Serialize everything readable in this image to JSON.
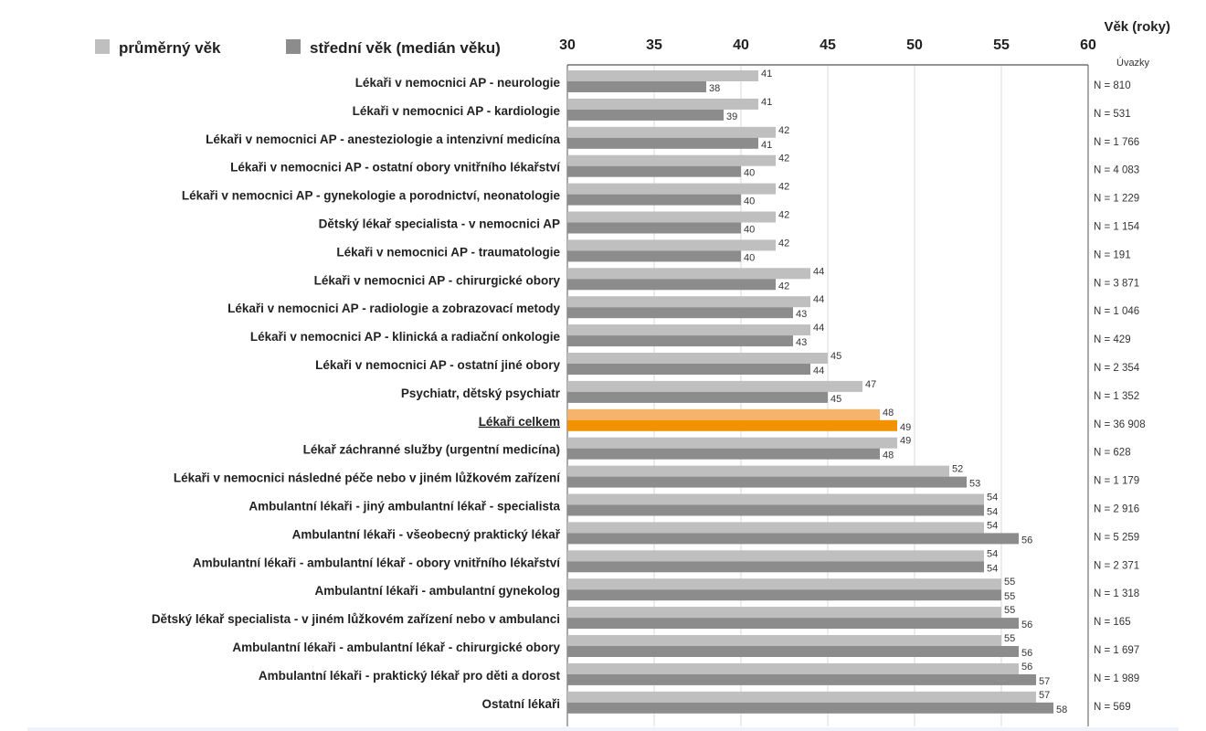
{
  "chart_data": {
    "type": "bar",
    "orientation": "horizontal",
    "xlabel": "Věk (roky)",
    "xlim": [
      30,
      60
    ],
    "xticks": [
      30,
      35,
      40,
      45,
      50,
      55,
      60
    ],
    "grid": true,
    "legend_position": "top-left",
    "right_column_header": "Úvazky",
    "series": [
      {
        "name": "průměrný věk",
        "color": "#bfbfbf"
      },
      {
        "name": "střední věk (medián věku)",
        "color": "#8c8c8c"
      }
    ],
    "highlight": {
      "category": "Lékaři celkem",
      "colors": [
        "#f5b36b",
        "#f39200"
      ]
    },
    "rows": [
      {
        "label": "Lékaři v nemocnici AP - neurologie",
        "mean": 41,
        "median": 38,
        "n": "N = 810"
      },
      {
        "label": "Lékaři v nemocnici AP - kardiologie",
        "mean": 41,
        "median": 39,
        "n": "N = 531"
      },
      {
        "label": "Lékaři v nemocnici AP - anesteziologie a intenzivní medicína",
        "mean": 42,
        "median": 41,
        "n": "N = 1 766"
      },
      {
        "label": "Lékaři v nemocnici AP - ostatní obory vnitřního lékařství",
        "mean": 42,
        "median": 40,
        "n": "N = 4 083"
      },
      {
        "label": "Lékaři v nemocnici AP - gynekologie a porodnictví, neonatologie",
        "mean": 42,
        "median": 40,
        "n": "N = 1 229"
      },
      {
        "label": "Dětský lékař specialista - v nemocnici AP",
        "mean": 42,
        "median": 40,
        "n": "N = 1 154"
      },
      {
        "label": "Lékaři v nemocnici AP - traumatologie",
        "mean": 42,
        "median": 40,
        "n": "N = 191"
      },
      {
        "label": "Lékaři v nemocnici AP - chirurgické obory",
        "mean": 44,
        "median": 42,
        "n": "N = 3 871"
      },
      {
        "label": "Lékaři v nemocnici AP - radiologie a zobrazovací metody",
        "mean": 44,
        "median": 43,
        "n": "N = 1 046"
      },
      {
        "label": "Lékaři v nemocnici AP - klinická a radiační onkologie",
        "mean": 44,
        "median": 43,
        "n": "N = 429"
      },
      {
        "label": "Lékaři v nemocnici AP - ostatní jiné obory",
        "mean": 45,
        "median": 44,
        "n": "N = 2 354"
      },
      {
        "label": "Psychiatr, dětský psychiatr",
        "mean": 47,
        "median": 45,
        "n": "N = 1 352"
      },
      {
        "label": "Lékaři celkem",
        "mean": 48,
        "median": 49,
        "n": "N = 36 908",
        "highlight": true
      },
      {
        "label": "Lékař záchranné služby (urgentní medicína)",
        "mean": 49,
        "median": 48,
        "n": "N = 628"
      },
      {
        "label": "Lékaři v nemocnici následné péče nebo v jiném lůžkovém zařízení",
        "mean": 52,
        "median": 53,
        "n": "N = 1 179"
      },
      {
        "label": "Ambulantní lékaři - jiný ambulantní lékař - specialista",
        "mean": 54,
        "median": 54,
        "n": "N = 2 916"
      },
      {
        "label": "Ambulantní lékaři - všeobecný praktický lékař",
        "mean": 54,
        "median": 56,
        "n": "N = 5 259"
      },
      {
        "label": "Ambulantní lékaři - ambulantní lékař - obory vnitřního lékařství",
        "mean": 54,
        "median": 54,
        "n": "N = 2 371"
      },
      {
        "label": "Ambulantní lékaři - ambulantní gynekolog",
        "mean": 55,
        "median": 55,
        "n": "N = 1 318"
      },
      {
        "label": "Dětský lékař specialista - v jiném lůžkovém zařízení nebo v ambulanci",
        "mean": 55,
        "median": 56,
        "n": "N = 165"
      },
      {
        "label": "Ambulantní lékaři - ambulantní lékař - chirurgické obory",
        "mean": 55,
        "median": 56,
        "n": "N = 1 697"
      },
      {
        "label": "Ambulantní lékaři - praktický lékař pro děti a dorost",
        "mean": 56,
        "median": 57,
        "n": "N = 1 989"
      },
      {
        "label": "Ostatní lékaři",
        "mean": 57,
        "median": 58,
        "n": "N = 569"
      }
    ]
  }
}
